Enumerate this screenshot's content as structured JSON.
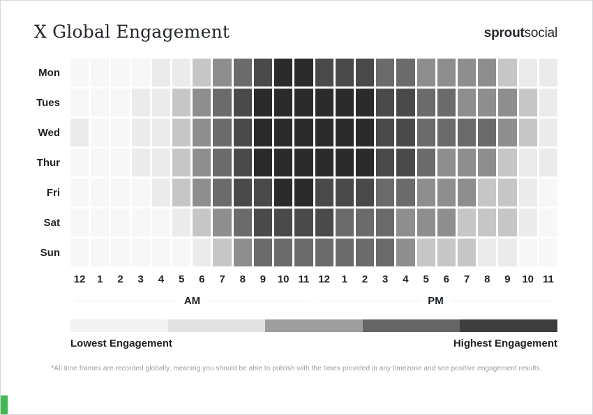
{
  "header": {
    "title": "X Global Engagement",
    "brand": {
      "bold": "sprout",
      "regular": "social"
    }
  },
  "chart_data": {
    "type": "heatmap",
    "title": "X Global Engagement",
    "rows": [
      "Mon",
      "Tues",
      "Wed",
      "Thur",
      "Fri",
      "Sat",
      "Sun"
    ],
    "columns": [
      "12 AM",
      "1 AM",
      "2 AM",
      "3 AM",
      "4 AM",
      "5 AM",
      "6 AM",
      "7 AM",
      "8 AM",
      "9 AM",
      "10 AM",
      "11 AM",
      "12 PM",
      "1 PM",
      "2 PM",
      "3 PM",
      "4 PM",
      "5 PM",
      "6 PM",
      "7 PM",
      "8 PM",
      "9 PM",
      "10 PM",
      "11 PM"
    ],
    "value_scale": "engagement level index, 0 = lowest, 6 = highest",
    "values": [
      [
        0,
        0,
        0,
        0,
        1,
        1,
        2,
        3,
        4,
        5,
        6,
        6,
        5,
        5,
        5,
        4,
        4,
        3,
        3,
        3,
        3,
        2,
        1,
        1
      ],
      [
        0,
        0,
        0,
        1,
        1,
        2,
        3,
        4,
        5,
        6,
        6,
        6,
        6,
        6,
        6,
        5,
        5,
        4,
        4,
        3,
        3,
        3,
        2,
        1
      ],
      [
        1,
        0,
        0,
        1,
        1,
        2,
        3,
        4,
        5,
        6,
        6,
        6,
        6,
        6,
        6,
        5,
        5,
        4,
        4,
        4,
        4,
        3,
        2,
        1
      ],
      [
        0,
        0,
        0,
        1,
        1,
        2,
        3,
        4,
        5,
        6,
        6,
        6,
        6,
        6,
        6,
        5,
        5,
        4,
        3,
        3,
        3,
        2,
        1,
        1
      ],
      [
        0,
        0,
        0,
        0,
        1,
        2,
        3,
        4,
        5,
        5,
        6,
        6,
        5,
        5,
        5,
        4,
        4,
        3,
        3,
        3,
        2,
        2,
        1,
        0
      ],
      [
        0,
        0,
        0,
        0,
        0,
        1,
        2,
        3,
        4,
        5,
        5,
        5,
        5,
        4,
        4,
        4,
        3,
        3,
        3,
        2,
        2,
        2,
        1,
        0
      ],
      [
        0,
        0,
        0,
        0,
        0,
        0,
        1,
        2,
        3,
        4,
        4,
        4,
        4,
        4,
        4,
        4,
        3,
        2,
        2,
        2,
        1,
        1,
        0,
        0
      ]
    ],
    "palette": [
      "#f7f7f7",
      "#ebebeb",
      "#c6c6c6",
      "#8e8e8e",
      "#6b6b6b",
      "#4a4a4a",
      "#2b2b2b"
    ],
    "legend": {
      "segments": [
        "#f2f2f2",
        "#e2e2e2",
        "#9d9d9d",
        "#656565",
        "#3d3d3d"
      ],
      "lowest_label": "Lowest Engagement",
      "highest_label": "Highest Engagement"
    },
    "grid": false,
    "legend_position": "bottom"
  },
  "axis": {
    "hour_labels": [
      "12",
      "1",
      "2",
      "3",
      "4",
      "5",
      "6",
      "7",
      "8",
      "9",
      "10",
      "11",
      "12",
      "1",
      "2",
      "3",
      "4",
      "5",
      "6",
      "7",
      "8",
      "9",
      "10",
      "11"
    ],
    "period_labels": [
      "AM",
      "PM"
    ]
  },
  "footnote": "*All time frames are recorded globally, meaning you should be able to publish with the times provided in any timezone and see positive engagement results.",
  "colors": {
    "accent_green": "#44b850",
    "text_dark": "#23282d",
    "footnote_gray": "#959da3"
  }
}
